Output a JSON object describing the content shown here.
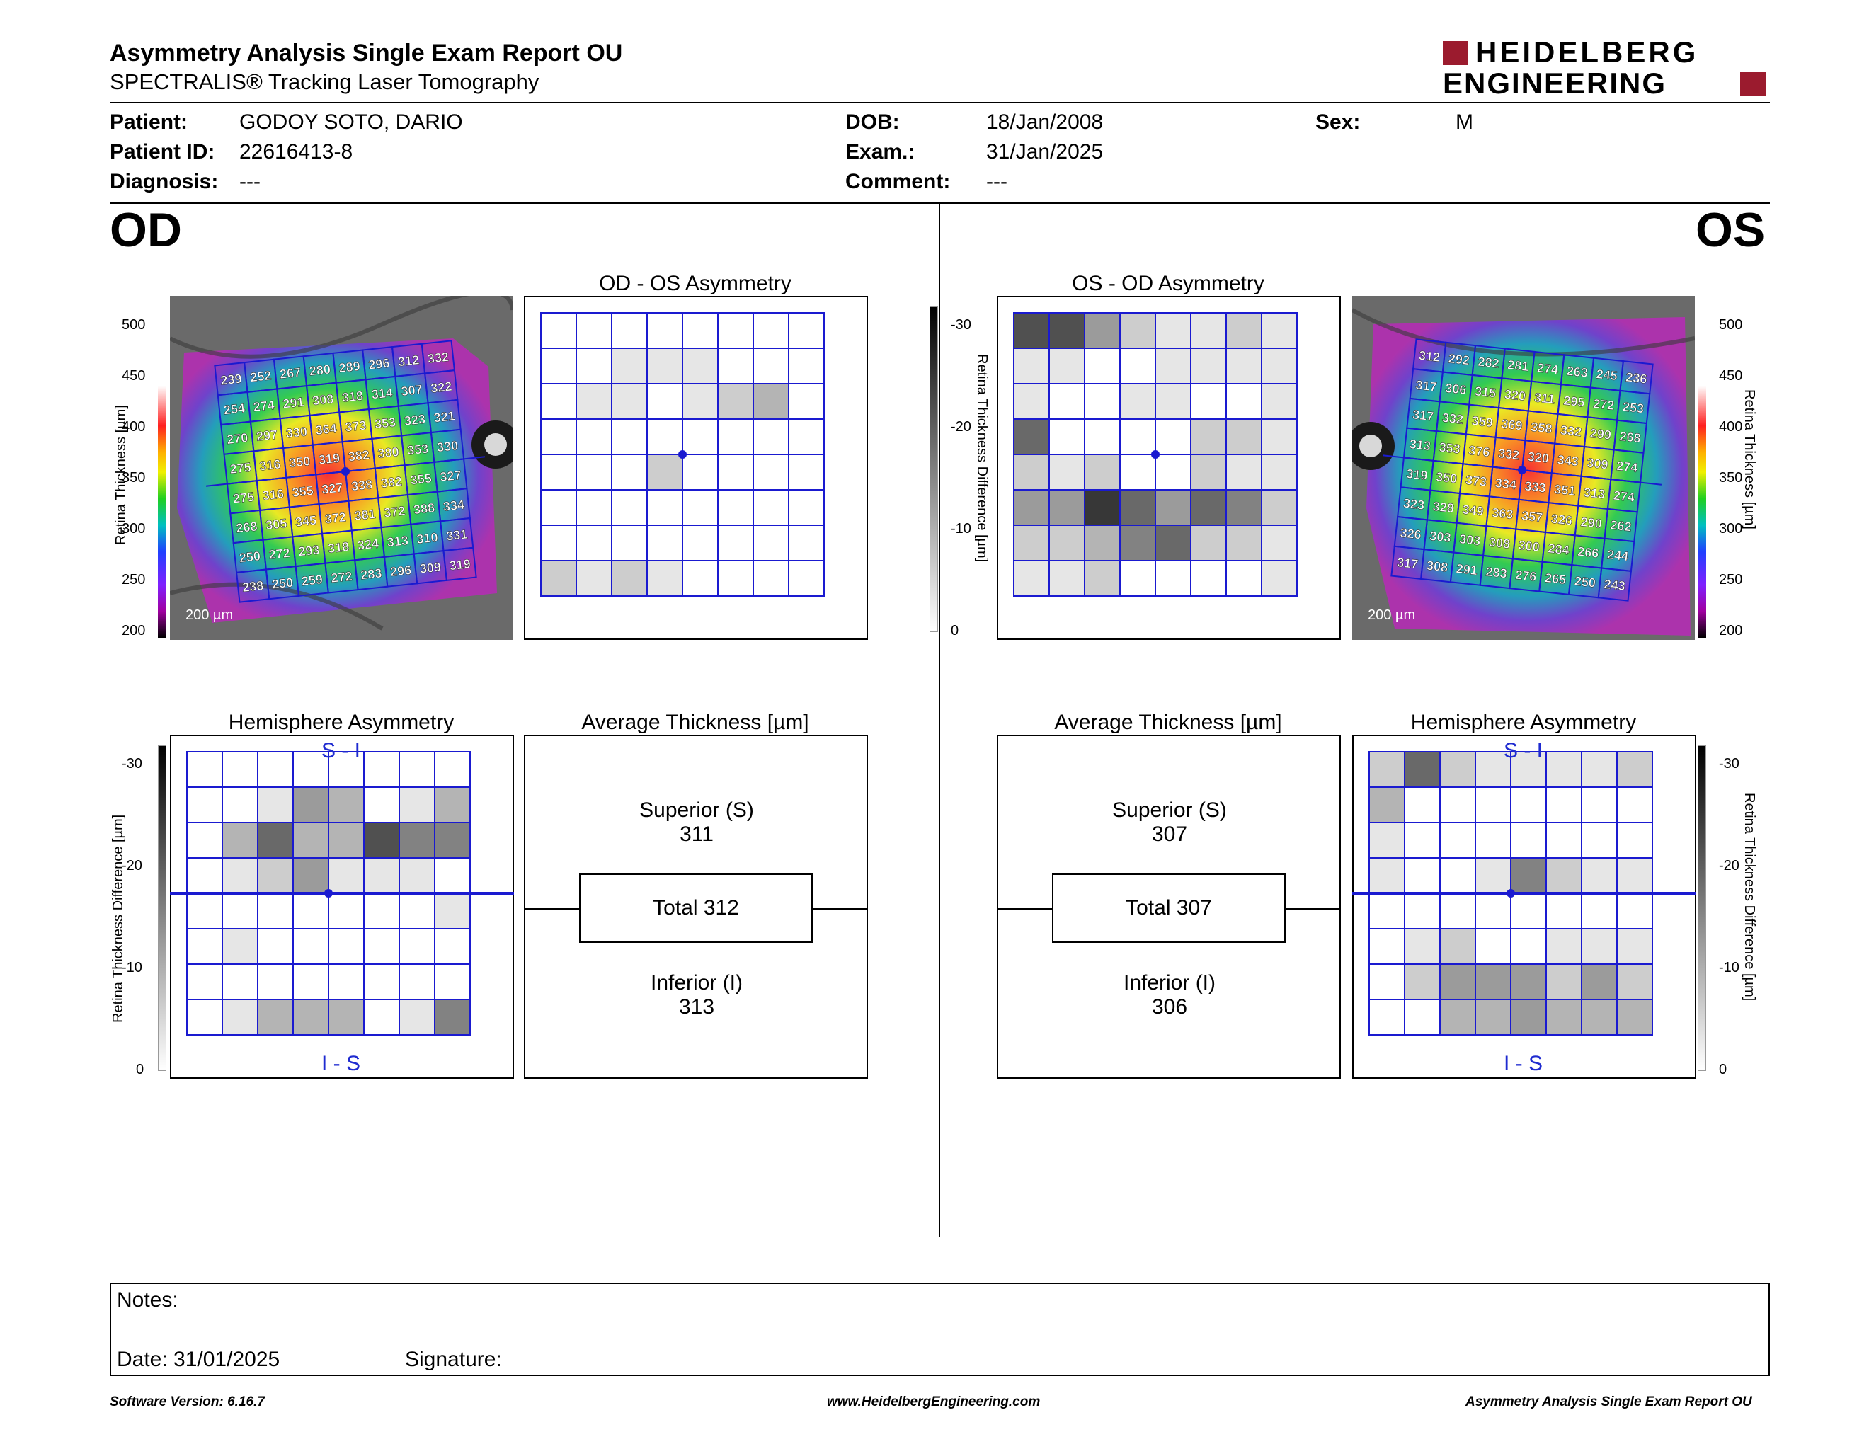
{
  "header": {
    "title": "Asymmetry Analysis Single Exam Report OU",
    "subtitle": "SPECTRALIS® Tracking Laser Tomography",
    "logo_line1": "HEIDELBERG",
    "logo_line2": "ENGINEERING"
  },
  "patient": {
    "patient_label": "Patient:",
    "patient_value": "GODOY SOTO, DARIO",
    "id_label": "Patient ID:",
    "id_value": "22616413-8",
    "diagnosis_label": "Diagnosis:",
    "diagnosis_value": "---",
    "dob_label": "DOB:",
    "dob_value": "18/Jan/2008",
    "exam_label": "Exam.:",
    "exam_value": "31/Jan/2025",
    "comment_label": "Comment:",
    "comment_value": "---",
    "sex_label": "Sex:",
    "sex_value": "M"
  },
  "od": {
    "eye_label": "OD",
    "asym_title": "OD - OS Asymmetry",
    "hemi_title": "Hemisphere Asymmetry",
    "avg_title": "Average Thickness [µm]",
    "superior_label": "Superior (S)",
    "superior_value": "311",
    "total_label": "Total 312",
    "inferior_label": "Inferior (I)",
    "inferior_value": "313",
    "scale_label": "200 µm",
    "hemi_top": "S - I",
    "hemi_bottom": "I - S",
    "thickness_grid": [
      [
        239,
        252,
        267,
        280,
        289,
        296,
        312,
        332
      ],
      [
        254,
        274,
        291,
        308,
        318,
        314,
        307,
        322
      ],
      [
        270,
        297,
        330,
        364,
        373,
        353,
        323,
        321
      ],
      [
        275,
        316,
        350,
        319,
        382,
        380,
        353,
        330
      ],
      [
        275,
        316,
        355,
        327,
        338,
        382,
        355,
        327
      ],
      [
        268,
        305,
        345,
        372,
        381,
        372,
        388,
        334
      ],
      [
        250,
        272,
        293,
        318,
        324,
        313,
        310,
        331
      ],
      [
        238,
        250,
        259,
        272,
        283,
        296,
        309,
        319
      ]
    ],
    "asym_grid": [
      [
        0,
        0,
        0,
        0,
        0,
        0,
        0,
        0
      ],
      [
        0,
        0,
        1,
        1,
        1,
        0,
        0,
        0
      ],
      [
        0,
        1,
        1,
        0,
        1,
        2,
        3,
        0
      ],
      [
        0,
        0,
        0,
        0,
        0,
        0,
        0,
        0
      ],
      [
        0,
        0,
        0,
        2,
        0,
        0,
        0,
        0
      ],
      [
        0,
        0,
        0,
        0,
        0,
        0,
        0,
        0
      ],
      [
        0,
        0,
        0,
        0,
        0,
        0,
        0,
        0
      ],
      [
        2,
        1,
        2,
        1,
        0,
        0,
        0,
        0
      ]
    ],
    "hemi_grid": [
      [
        0,
        0,
        0,
        0,
        0,
        0,
        0,
        0
      ],
      [
        0,
        0,
        1,
        4,
        3,
        0,
        1,
        3
      ],
      [
        0,
        3,
        6,
        3,
        3,
        7,
        5,
        5
      ],
      [
        0,
        1,
        2,
        4,
        1,
        1,
        1,
        0
      ],
      [
        0,
        0,
        0,
        0,
        0,
        0,
        0,
        1
      ],
      [
        0,
        1,
        0,
        0,
        0,
        0,
        0,
        0
      ],
      [
        0,
        0,
        0,
        0,
        0,
        0,
        0,
        0
      ],
      [
        0,
        1,
        3,
        3,
        3,
        0,
        1,
        5
      ]
    ]
  },
  "os": {
    "eye_label": "OS",
    "asym_title": "OS - OD Asymmetry",
    "hemi_title": "Hemisphere Asymmetry",
    "avg_title": "Average Thickness [µm]",
    "superior_label": "Superior (S)",
    "superior_value": "307",
    "total_label": "Total 307",
    "inferior_label": "Inferior (I)",
    "inferior_value": "306",
    "scale_label": "200 µm",
    "hemi_top": "S - I",
    "hemi_bottom": "I - S",
    "thickness_grid": [
      [
        312,
        292,
        282,
        281,
        274,
        263,
        245,
        236
      ],
      [
        317,
        306,
        315,
        320,
        311,
        295,
        272,
        253
      ],
      [
        317,
        332,
        359,
        369,
        358,
        332,
        299,
        268
      ],
      [
        313,
        353,
        376,
        332,
        320,
        343,
        309,
        274
      ],
      [
        319,
        350,
        373,
        334,
        333,
        351,
        313,
        274
      ],
      [
        323,
        328,
        349,
        363,
        357,
        326,
        290,
        262
      ],
      [
        326,
        303,
        303,
        308,
        300,
        284,
        266,
        244
      ],
      [
        317,
        308,
        291,
        283,
        276,
        265,
        250,
        243
      ]
    ],
    "asym_grid": [
      [
        7,
        7,
        4,
        2,
        1,
        1,
        2,
        1
      ],
      [
        1,
        1,
        0,
        0,
        1,
        1,
        1,
        1
      ],
      [
        1,
        0,
        0,
        1,
        1,
        0,
        0,
        1
      ],
      [
        6,
        0,
        0,
        0,
        0,
        2,
        2,
        1
      ],
      [
        2,
        1,
        2,
        0,
        0,
        2,
        1,
        1
      ],
      [
        4,
        4,
        8,
        6,
        4,
        6,
        5,
        2
      ],
      [
        2,
        2,
        3,
        5,
        6,
        2,
        2,
        1
      ],
      [
        1,
        1,
        2,
        0,
        0,
        0,
        0,
        1
      ]
    ],
    "hemi_grid": [
      [
        2,
        6,
        2,
        1,
        1,
        1,
        1,
        2
      ],
      [
        3,
        0,
        0,
        0,
        0,
        0,
        0,
        0
      ],
      [
        1,
        0,
        0,
        0,
        0,
        0,
        0,
        0
      ],
      [
        1,
        0,
        0,
        1,
        5,
        2,
        1,
        1
      ],
      [
        0,
        0,
        0,
        0,
        0,
        0,
        0,
        0
      ],
      [
        0,
        1,
        2,
        0,
        0,
        1,
        1,
        1
      ],
      [
        0,
        2,
        4,
        4,
        4,
        2,
        4,
        2
      ],
      [
        0,
        0,
        3,
        3,
        4,
        3,
        3,
        3
      ]
    ]
  },
  "scales": {
    "thickness_ticks": [
      "500",
      "450",
      "400",
      "350",
      "300",
      "250",
      "200"
    ],
    "thickness_label": "Retina Thickness [µm]",
    "diff_ticks": [
      "-30",
      "-20",
      "-10",
      "0"
    ],
    "diff_label": "Retina Thickness Difference [µm]"
  },
  "notes": {
    "notes_label": "Notes:",
    "date_label": "Date: 31/01/2025",
    "signature_label": "Signature:"
  },
  "footer": {
    "software": "Software Version: 6.16.7",
    "website": "www.HeidelbergEngineering.com",
    "report_name": "Asymmetry Analysis Single Exam Report OU"
  },
  "colors": {
    "grid_blue": "#1a1ad0",
    "logo_red": "#9b1b2e"
  }
}
